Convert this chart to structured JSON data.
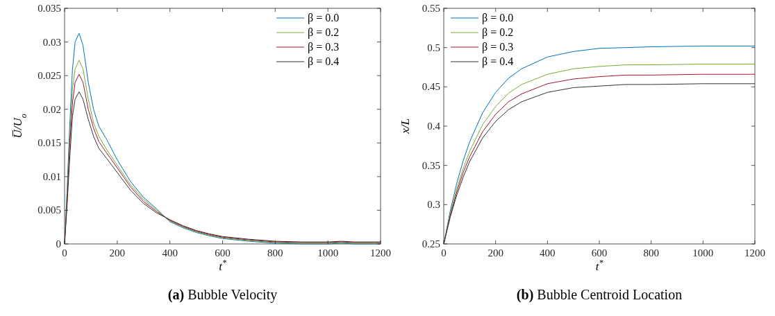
{
  "chart_data": [
    {
      "type": "line",
      "title": "(a) Bubble Velocity",
      "xlabel": "t$^{*}$",
      "ylabel": "U̅/U$_{o}$",
      "xlim": [
        0,
        1200
      ],
      "xticks": [
        0,
        200,
        400,
        600,
        800,
        1000,
        1200
      ],
      "ylim": [
        0,
        0.035
      ],
      "yticks": [
        0,
        0.005,
        0.01,
        0.015,
        0.02,
        0.025,
        0.03,
        0.035
      ],
      "grid": false,
      "legend": "top right",
      "line_style": "solid",
      "marker": "none",
      "series": [
        {
          "name": "β = 0.0",
          "color": "#0072bd",
          "x": [
            0,
            10,
            20,
            30,
            40,
            55,
            70,
            90,
            110,
            130,
            160,
            200,
            250,
            300,
            350,
            400,
            450,
            500,
            550,
            600,
            700,
            800,
            900,
            1000,
            1050,
            1100,
            1200
          ],
          "values": [
            0,
            0.0085,
            0.018,
            0.026,
            0.03,
            0.0313,
            0.0295,
            0.024,
            0.02,
            0.0175,
            0.0155,
            0.0125,
            0.0093,
            0.0069,
            0.0052,
            0.0033,
            0.0024,
            0.0017,
            0.0012,
            0.0008,
            0.0004,
            0.0001,
            0,
            0,
            0.0001,
            0,
            0
          ]
        },
        {
          "name": "β = 0.2",
          "color": "#77ac30",
          "x": [
            0,
            10,
            20,
            30,
            40,
            55,
            70,
            90,
            110,
            130,
            160,
            200,
            250,
            300,
            350,
            400,
            450,
            500,
            550,
            600,
            700,
            800,
            900,
            1000,
            1050,
            1100,
            1200
          ],
          "values": [
            0,
            0.0075,
            0.016,
            0.023,
            0.026,
            0.0273,
            0.026,
            0.0215,
            0.018,
            0.016,
            0.014,
            0.0117,
            0.0088,
            0.0066,
            0.005,
            0.0034,
            0.0025,
            0.0018,
            0.0013,
            0.0009,
            0.0005,
            0.0002,
            0.0001,
            0.0001,
            0.0002,
            0.0001,
            0.0001
          ]
        },
        {
          "name": "β = 0.3",
          "color": "#a2142f",
          "x": [
            0,
            10,
            20,
            30,
            40,
            55,
            70,
            90,
            110,
            130,
            160,
            200,
            250,
            300,
            350,
            400,
            450,
            500,
            550,
            600,
            700,
            800,
            900,
            1000,
            1050,
            1100,
            1200
          ],
          "values": [
            0,
            0.0068,
            0.015,
            0.021,
            0.024,
            0.0252,
            0.024,
            0.02,
            0.0172,
            0.0152,
            0.0135,
            0.0113,
            0.0085,
            0.0063,
            0.0048,
            0.0035,
            0.0026,
            0.0019,
            0.0014,
            0.001,
            0.0006,
            0.0003,
            0.0002,
            0.0002,
            0.0003,
            0.0002,
            0.0002
          ]
        },
        {
          "name": "β = 0.4",
          "color": "#333333",
          "x": [
            0,
            10,
            20,
            30,
            40,
            55,
            70,
            90,
            110,
            130,
            160,
            200,
            250,
            300,
            350,
            400,
            450,
            500,
            550,
            600,
            700,
            800,
            900,
            1000,
            1050,
            1100,
            1200
          ],
          "values": [
            0,
            0.006,
            0.013,
            0.019,
            0.0215,
            0.0226,
            0.0215,
            0.0185,
            0.016,
            0.0142,
            0.0127,
            0.0106,
            0.008,
            0.006,
            0.0046,
            0.0036,
            0.0027,
            0.002,
            0.0015,
            0.0011,
            0.0007,
            0.0004,
            0.0003,
            0.0003,
            0.0004,
            0.0003,
            0.0003
          ]
        }
      ]
    },
    {
      "type": "line",
      "title": "(b) Bubble Centroid Location",
      "xlabel": "t$^{*}$",
      "ylabel": "x/L",
      "xlim": [
        0,
        1200
      ],
      "xticks": [
        0,
        200,
        400,
        600,
        800,
        1000,
        1200
      ],
      "ylim": [
        0.25,
        0.55
      ],
      "yticks": [
        0.25,
        0.3,
        0.35,
        0.4,
        0.45,
        0.5,
        0.55
      ],
      "grid": false,
      "legend": "top left",
      "line_style": "solid",
      "marker": "none",
      "series": [
        {
          "name": "β = 0.0",
          "color": "#0072bd",
          "x": [
            0,
            25,
            50,
            75,
            100,
            150,
            200,
            250,
            300,
            400,
            500,
            600,
            700,
            800,
            1000,
            1200
          ],
          "values": [
            0.25,
            0.292,
            0.327,
            0.356,
            0.38,
            0.417,
            0.443,
            0.461,
            0.473,
            0.488,
            0.495,
            0.499,
            0.5,
            0.501,
            0.502,
            0.502
          ]
        },
        {
          "name": "β = 0.2",
          "color": "#77ac30",
          "x": [
            0,
            25,
            50,
            75,
            100,
            150,
            200,
            250,
            300,
            400,
            500,
            600,
            700,
            800,
            1000,
            1200
          ],
          "values": [
            0.25,
            0.288,
            0.32,
            0.346,
            0.368,
            0.402,
            0.425,
            0.442,
            0.453,
            0.466,
            0.473,
            0.476,
            0.478,
            0.478,
            0.479,
            0.479
          ]
        },
        {
          "name": "β = 0.3",
          "color": "#a2142f",
          "x": [
            0,
            25,
            50,
            75,
            100,
            150,
            200,
            250,
            300,
            400,
            500,
            600,
            700,
            800,
            1000,
            1200
          ],
          "values": [
            0.25,
            0.286,
            0.316,
            0.341,
            0.361,
            0.393,
            0.415,
            0.431,
            0.441,
            0.454,
            0.46,
            0.463,
            0.465,
            0.465,
            0.466,
            0.466
          ]
        },
        {
          "name": "β = 0.4",
          "color": "#333333",
          "x": [
            0,
            25,
            50,
            75,
            100,
            150,
            200,
            250,
            300,
            400,
            500,
            600,
            700,
            800,
            1000,
            1200
          ],
          "values": [
            0.25,
            0.284,
            0.312,
            0.335,
            0.355,
            0.385,
            0.406,
            0.421,
            0.431,
            0.443,
            0.449,
            0.451,
            0.453,
            0.453,
            0.454,
            0.454
          ]
        }
      ]
    }
  ]
}
